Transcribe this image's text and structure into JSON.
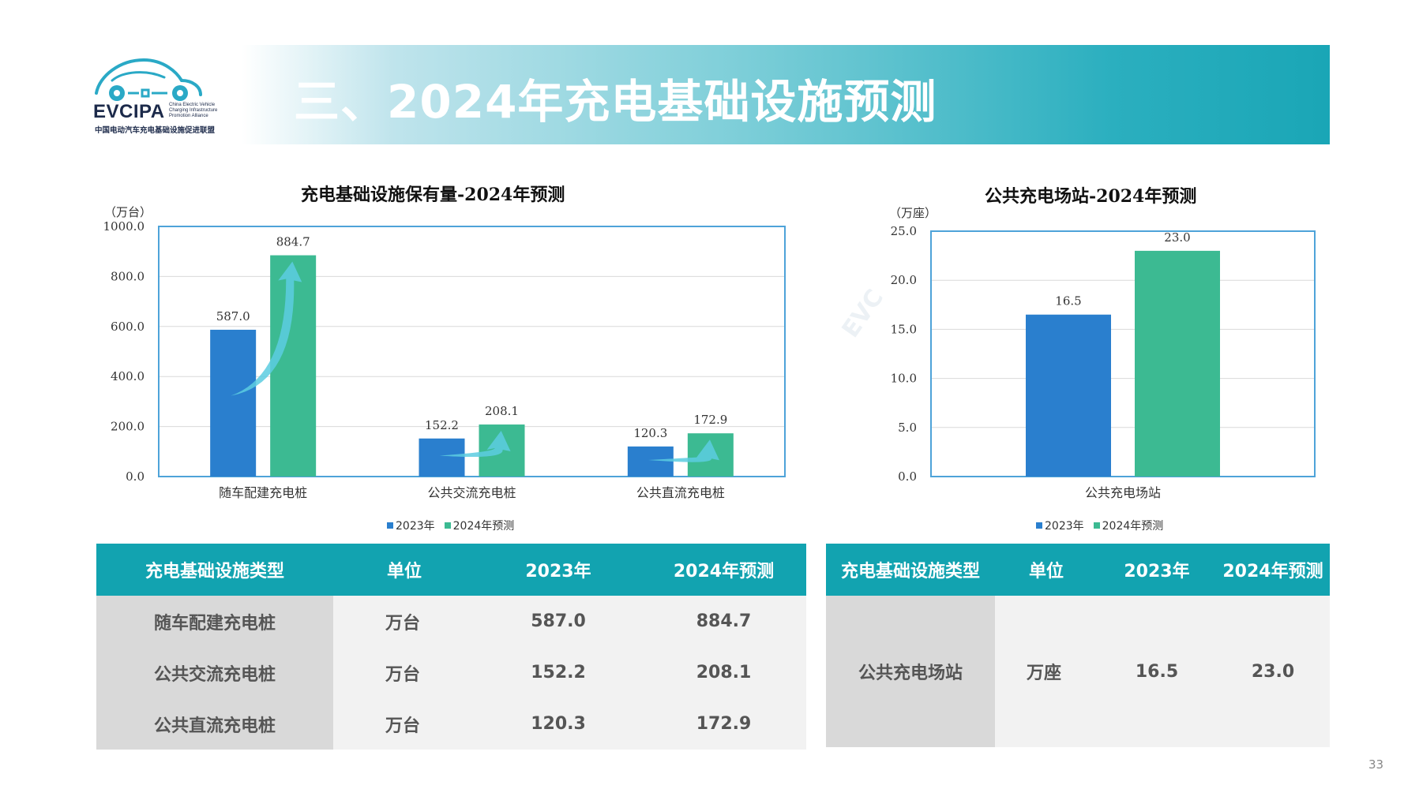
{
  "logo": {
    "name": "EVCIPA",
    "sub_en": [
      "China Electric Vehicle",
      "Charging Infrastructure",
      "Promotion Alliance"
    ],
    "sub_cn": "中国电动汽车充电基础设施促进联盟"
  },
  "header": {
    "title": "三、2024年充电基础设施预测"
  },
  "page_number": "33",
  "colors": {
    "series_2023": "#2a7fce",
    "series_2024": "#3cba92",
    "header_teal": "#12a3b0",
    "axis_border": "#4ea3d9"
  },
  "chart_data": [
    {
      "type": "bar",
      "title": "充电基础设施保有量-2024年预测",
      "unit": "（万台）",
      "categories": [
        "随车配建充电桩",
        "公共交流充电桩",
        "公共直流充电桩"
      ],
      "series": [
        {
          "name": "2023年",
          "values": [
            587.0,
            152.2,
            120.3
          ],
          "labels": [
            "587.0",
            "152.2",
            "120.3"
          ]
        },
        {
          "name": "2024年预测",
          "values": [
            884.7,
            208.1,
            172.9
          ],
          "labels": [
            "884.7",
            "208.1",
            "172.9"
          ]
        }
      ],
      "ylim": [
        0,
        1000
      ],
      "yticks": [
        "0.0",
        "200.0",
        "400.0",
        "600.0",
        "800.0",
        "1000.0"
      ],
      "grid": true,
      "legend": "bottom"
    },
    {
      "type": "bar",
      "title": "公共充电场站-2024年预测",
      "unit": "（万座）",
      "categories": [
        "公共充电场站"
      ],
      "series": [
        {
          "name": "2023年",
          "values": [
            16.5
          ],
          "labels": [
            "16.5"
          ]
        },
        {
          "name": "2024年预测",
          "values": [
            23.0
          ],
          "labels": [
            "23.0"
          ]
        }
      ],
      "ylim": [
        0,
        25
      ],
      "yticks": [
        "0.0",
        "5.0",
        "10.0",
        "15.0",
        "20.0",
        "25.0"
      ],
      "grid": true,
      "legend": "bottom"
    }
  ],
  "table_left": {
    "headers": [
      "充电基础设施类型",
      "单位",
      "2023年",
      "2024年预测"
    ],
    "rows": [
      [
        "随车配建充电桩",
        "万台",
        "587.0",
        "884.7"
      ],
      [
        "公共交流充电桩",
        "万台",
        "152.2",
        "208.1"
      ],
      [
        "公共直流充电桩",
        "万台",
        "120.3",
        "172.9"
      ]
    ]
  },
  "table_right": {
    "headers": [
      "充电基础设施类型",
      "单位",
      "2023年",
      "2024年预测"
    ],
    "rows": [
      [
        "公共充电场站",
        "万座",
        "16.5",
        "23.0"
      ]
    ]
  }
}
